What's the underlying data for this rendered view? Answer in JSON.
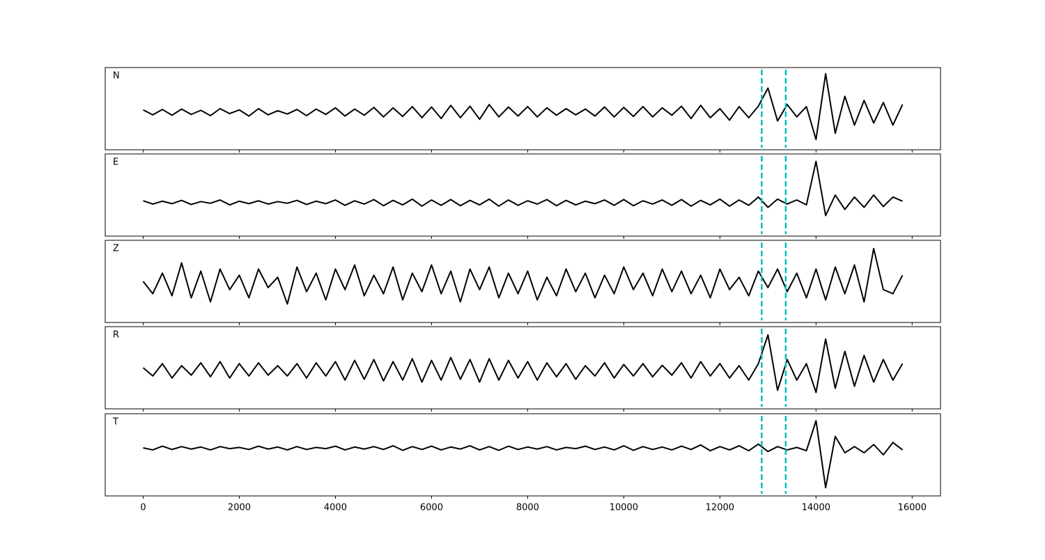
{
  "chart_data": {
    "type": "line",
    "x": [
      0,
      200,
      400,
      600,
      800,
      1000,
      1200,
      1400,
      1600,
      1800,
      2000,
      2200,
      2400,
      2600,
      2800,
      3000,
      3200,
      3400,
      3600,
      3800,
      4000,
      4200,
      4400,
      4600,
      4800,
      5000,
      5200,
      5400,
      5600,
      5800,
      6000,
      6200,
      6400,
      6600,
      6800,
      7000,
      7200,
      7400,
      7600,
      7800,
      8000,
      8200,
      8400,
      8600,
      8800,
      9000,
      9200,
      9400,
      9600,
      9800,
      10000,
      10200,
      10400,
      10600,
      10800,
      11000,
      11200,
      11400,
      11600,
      11800,
      12000,
      12200,
      12400,
      12600,
      12800,
      13000,
      13200,
      13400,
      13600,
      13800,
      14000,
      14200,
      14400,
      14600,
      14800,
      15000,
      15200,
      15400,
      15600,
      15800
    ],
    "xlim": [
      -790,
      16590
    ],
    "xticks": [
      0,
      2000,
      4000,
      6000,
      8000,
      10000,
      12000,
      14000,
      16000
    ],
    "ylim": [
      -1,
      1
    ],
    "series": [
      {
        "name": "N",
        "color": "#000000",
        "values": [
          -0.03,
          -0.15,
          -0.02,
          -0.16,
          -0.01,
          -0.14,
          -0.04,
          -0.17,
          0.0,
          -0.12,
          -0.03,
          -0.18,
          0.0,
          -0.15,
          -0.05,
          -0.13,
          -0.02,
          -0.17,
          -0.01,
          -0.14,
          0.02,
          -0.18,
          -0.01,
          -0.16,
          0.03,
          -0.2,
          0.02,
          -0.19,
          0.05,
          -0.22,
          0.04,
          -0.24,
          0.08,
          -0.22,
          0.06,
          -0.26,
          0.1,
          -0.2,
          0.04,
          -0.18,
          0.05,
          -0.2,
          0.02,
          -0.16,
          0.0,
          -0.15,
          -0.01,
          -0.18,
          0.04,
          -0.2,
          0.03,
          -0.19,
          0.05,
          -0.2,
          0.02,
          -0.16,
          0.06,
          -0.24,
          0.08,
          -0.22,
          0.0,
          -0.28,
          0.05,
          -0.22,
          0.06,
          0.5,
          -0.3,
          0.1,
          -0.2,
          0.05,
          -0.75,
          0.85,
          -0.6,
          0.3,
          -0.4,
          0.2,
          -0.35,
          0.15,
          -0.4,
          0.1
        ]
      },
      {
        "name": "E",
        "color": "#000000",
        "values": [
          -0.14,
          -0.22,
          -0.15,
          -0.21,
          -0.13,
          -0.23,
          -0.16,
          -0.2,
          -0.12,
          -0.24,
          -0.15,
          -0.21,
          -0.14,
          -0.22,
          -0.16,
          -0.2,
          -0.13,
          -0.23,
          -0.15,
          -0.21,
          -0.12,
          -0.25,
          -0.14,
          -0.22,
          -0.11,
          -0.26,
          -0.13,
          -0.24,
          -0.1,
          -0.27,
          -0.12,
          -0.25,
          -0.11,
          -0.26,
          -0.13,
          -0.24,
          -0.1,
          -0.27,
          -0.12,
          -0.25,
          -0.14,
          -0.22,
          -0.11,
          -0.26,
          -0.13,
          -0.24,
          -0.15,
          -0.21,
          -0.12,
          -0.25,
          -0.11,
          -0.26,
          -0.14,
          -0.22,
          -0.12,
          -0.25,
          -0.11,
          -0.27,
          -0.13,
          -0.24,
          -0.1,
          -0.27,
          -0.12,
          -0.25,
          -0.05,
          -0.3,
          -0.1,
          -0.22,
          -0.12,
          -0.24,
          0.82,
          -0.5,
          0.0,
          -0.35,
          -0.05,
          -0.3,
          0.0,
          -0.28,
          -0.05,
          -0.15
        ]
      },
      {
        "name": "Z",
        "color": "#000000",
        "values": [
          0.0,
          -0.3,
          0.2,
          -0.35,
          0.45,
          -0.4,
          0.25,
          -0.5,
          0.3,
          -0.2,
          0.15,
          -0.4,
          0.3,
          -0.15,
          0.1,
          -0.55,
          0.35,
          -0.25,
          0.2,
          -0.45,
          0.3,
          -0.2,
          0.4,
          -0.35,
          0.15,
          -0.3,
          0.35,
          -0.45,
          0.2,
          -0.25,
          0.4,
          -0.3,
          0.25,
          -0.5,
          0.3,
          -0.2,
          0.35,
          -0.4,
          0.2,
          -0.3,
          0.25,
          -0.45,
          0.1,
          -0.35,
          0.3,
          -0.25,
          0.2,
          -0.4,
          0.15,
          -0.3,
          0.35,
          -0.2,
          0.2,
          -0.35,
          0.3,
          -0.25,
          0.25,
          -0.3,
          0.15,
          -0.4,
          0.3,
          -0.2,
          0.1,
          -0.35,
          0.25,
          -0.15,
          0.3,
          -0.25,
          0.2,
          -0.4,
          0.3,
          -0.45,
          0.35,
          -0.3,
          0.4,
          -0.5,
          0.8,
          -0.2,
          -0.3,
          0.15
        ]
      },
      {
        "name": "R",
        "color": "#000000",
        "values": [
          0.0,
          -0.2,
          0.1,
          -0.25,
          0.05,
          -0.18,
          0.12,
          -0.22,
          0.15,
          -0.25,
          0.1,
          -0.2,
          0.12,
          -0.18,
          0.05,
          -0.2,
          0.1,
          -0.25,
          0.12,
          -0.2,
          0.15,
          -0.3,
          0.18,
          -0.28,
          0.2,
          -0.32,
          0.15,
          -0.3,
          0.22,
          -0.35,
          0.18,
          -0.3,
          0.25,
          -0.28,
          0.2,
          -0.35,
          0.22,
          -0.3,
          0.18,
          -0.25,
          0.15,
          -0.3,
          0.12,
          -0.22,
          0.1,
          -0.28,
          0.05,
          -0.2,
          0.12,
          -0.25,
          0.08,
          -0.2,
          0.1,
          -0.22,
          0.06,
          -0.18,
          0.12,
          -0.25,
          0.15,
          -0.2,
          0.1,
          -0.25,
          0.05,
          -0.3,
          0.1,
          0.8,
          -0.55,
          0.2,
          -0.3,
          0.1,
          -0.6,
          0.7,
          -0.5,
          0.4,
          -0.45,
          0.3,
          -0.35,
          0.2,
          -0.3,
          0.1
        ]
      },
      {
        "name": "T",
        "color": "#000000",
        "values": [
          0.17,
          0.12,
          0.21,
          0.13,
          0.2,
          0.14,
          0.19,
          0.12,
          0.2,
          0.15,
          0.18,
          0.13,
          0.21,
          0.14,
          0.19,
          0.12,
          0.2,
          0.13,
          0.18,
          0.15,
          0.21,
          0.12,
          0.19,
          0.14,
          0.2,
          0.13,
          0.22,
          0.11,
          0.2,
          0.13,
          0.21,
          0.12,
          0.19,
          0.14,
          0.22,
          0.12,
          0.2,
          0.11,
          0.21,
          0.13,
          0.19,
          0.14,
          0.2,
          0.12,
          0.18,
          0.15,
          0.21,
          0.13,
          0.19,
          0.12,
          0.22,
          0.11,
          0.2,
          0.13,
          0.19,
          0.12,
          0.21,
          0.13,
          0.24,
          0.1,
          0.2,
          0.12,
          0.22,
          0.1,
          0.26,
          0.08,
          0.2,
          0.12,
          0.18,
          0.1,
          0.83,
          -0.8,
          0.45,
          0.05,
          0.2,
          0.05,
          0.25,
          0.0,
          0.3,
          0.12
        ]
      }
    ],
    "vlines": [
      12870,
      13370
    ],
    "vline_color": "#00bfbf"
  }
}
